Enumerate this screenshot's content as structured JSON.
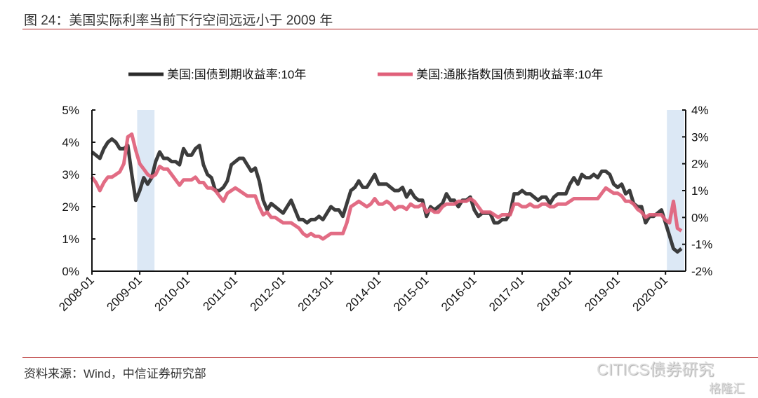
{
  "title": "图 24：美国实际利率当前下行空间远远小于 2009 年",
  "source": "资料来源：Wind，中信证券研究部",
  "watermarks": [
    "CITICS债券研究",
    "格隆汇"
  ],
  "colors": {
    "nominal": "#2b2b2b",
    "tips": "#e0607a",
    "shade": "#dce8f5",
    "rule": "#b22222"
  },
  "chart_data": {
    "type": "line",
    "title": "",
    "legend_position": "top-center",
    "x_start": "2008-01",
    "x_frequency": "monthly",
    "x_end": "2020-05",
    "xticks": [
      "2008-01",
      "2009-01",
      "2010-01",
      "2011-01",
      "2012-01",
      "2013-01",
      "2014-01",
      "2015-01",
      "2016-01",
      "2017-01",
      "2018-01",
      "2019-01",
      "2020-01"
    ],
    "left_axis": {
      "ylim": [
        0,
        5
      ],
      "ticks": [
        "0%",
        "1%",
        "2%",
        "3%",
        "4%",
        "5%"
      ]
    },
    "right_axis": {
      "ylim": [
        -2,
        4
      ],
      "ticks": [
        "-2%",
        "-1%",
        "0%",
        "1%",
        "2%",
        "3%",
        "4%"
      ]
    },
    "shaded_periods": [
      [
        "2008-12",
        "2009-04"
      ],
      [
        "2020-01",
        "2020-05"
      ]
    ],
    "series": [
      {
        "name": "美国:国债到期收益率:10年",
        "axis": "left",
        "values": [
          3.7,
          3.6,
          3.5,
          3.8,
          4.0,
          4.1,
          4.0,
          3.8,
          3.8,
          3.9,
          3.0,
          2.2,
          2.5,
          2.9,
          2.7,
          2.9,
          3.4,
          3.7,
          3.5,
          3.5,
          3.4,
          3.4,
          3.3,
          3.8,
          3.6,
          3.6,
          3.8,
          3.9,
          3.3,
          3.0,
          2.9,
          2.5,
          2.5,
          2.6,
          2.8,
          3.3,
          3.4,
          3.5,
          3.5,
          3.3,
          3.1,
          3.2,
          2.8,
          2.2,
          1.9,
          2.1,
          2.0,
          1.9,
          1.8,
          2.0,
          2.2,
          1.9,
          1.6,
          1.6,
          1.5,
          1.6,
          1.6,
          1.7,
          1.6,
          1.8,
          2.0,
          1.9,
          1.9,
          1.7,
          2.1,
          2.5,
          2.6,
          2.8,
          2.6,
          2.6,
          2.8,
          3.0,
          2.7,
          2.7,
          2.7,
          2.6,
          2.5,
          2.5,
          2.6,
          2.3,
          2.5,
          2.3,
          2.2,
          2.2,
          1.7,
          2.0,
          1.9,
          2.0,
          2.1,
          2.4,
          2.2,
          2.2,
          2.0,
          2.2,
          2.2,
          2.3,
          1.9,
          1.7,
          1.8,
          1.8,
          1.8,
          1.5,
          1.5,
          1.6,
          1.6,
          1.8,
          2.4,
          2.4,
          2.5,
          2.4,
          2.4,
          2.3,
          2.2,
          2.3,
          2.3,
          2.1,
          2.3,
          2.4,
          2.4,
          2.4,
          2.7,
          2.9,
          2.7,
          3.0,
          2.9,
          2.9,
          3.0,
          2.9,
          3.1,
          3.1,
          3.0,
          2.7,
          2.6,
          2.7,
          2.4,
          2.5,
          2.1,
          2.0,
          2.0,
          1.5,
          1.7,
          1.7,
          1.8,
          1.9,
          1.5,
          1.1,
          0.7,
          0.6,
          0.7
        ]
      },
      {
        "name": "美国:通胀指数国债到期收益率:10年",
        "axis": "right",
        "values": [
          1.5,
          1.3,
          1.0,
          1.3,
          1.5,
          1.5,
          1.6,
          1.7,
          2.0,
          3.0,
          3.1,
          2.5,
          2.0,
          1.8,
          1.6,
          1.5,
          1.6,
          1.9,
          1.8,
          1.8,
          1.6,
          1.4,
          1.2,
          1.4,
          1.4,
          1.4,
          1.5,
          1.3,
          1.3,
          1.1,
          1.1,
          1.0,
          0.8,
          0.6,
          0.9,
          1.0,
          1.1,
          1.0,
          0.9,
          0.8,
          0.8,
          0.8,
          0.4,
          0.1,
          0.2,
          0.0,
          0.0,
          -0.1,
          -0.2,
          -0.2,
          -0.2,
          -0.3,
          -0.4,
          -0.6,
          -0.7,
          -0.6,
          -0.7,
          -0.7,
          -0.8,
          -0.7,
          -0.6,
          -0.6,
          -0.6,
          -0.6,
          -0.2,
          0.4,
          0.5,
          0.6,
          0.5,
          0.4,
          0.5,
          0.7,
          0.5,
          0.5,
          0.6,
          0.5,
          0.3,
          0.4,
          0.4,
          0.3,
          0.5,
          0.4,
          0.4,
          0.5,
          0.2,
          0.3,
          0.2,
          0.2,
          0.4,
          0.5,
          0.5,
          0.5,
          0.6,
          0.6,
          0.6,
          0.7,
          0.6,
          0.4,
          0.2,
          0.2,
          0.2,
          0.1,
          0.0,
          0.1,
          0.1,
          0.1,
          0.5,
          0.5,
          0.4,
          0.4,
          0.5,
          0.4,
          0.4,
          0.5,
          0.5,
          0.4,
          0.4,
          0.5,
          0.5,
          0.5,
          0.6,
          0.7,
          0.7,
          0.7,
          0.7,
          0.7,
          0.7,
          0.7,
          0.9,
          1.1,
          1.0,
          0.9,
          0.9,
          0.8,
          0.6,
          0.6,
          0.5,
          0.3,
          0.2,
          0.0,
          0.1,
          0.1,
          0.1,
          0.1,
          -0.1,
          -0.2,
          0.6,
          -0.4,
          -0.5
        ]
      }
    ]
  }
}
